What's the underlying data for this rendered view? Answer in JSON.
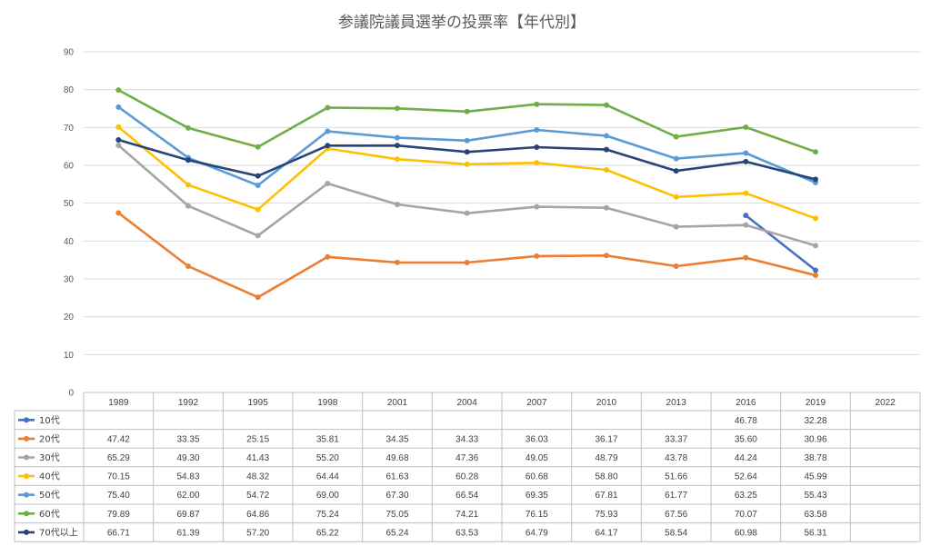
{
  "chart_data": {
    "type": "line",
    "title": "参議院議員選挙の投票率【年代別】",
    "categories": [
      "1989",
      "1992",
      "1995",
      "1998",
      "2001",
      "2004",
      "2007",
      "2010",
      "2013",
      "2016",
      "2019",
      "2022"
    ],
    "ylim": [
      0,
      90
    ],
    "yticks": [
      0,
      10,
      20,
      30,
      40,
      50,
      60,
      70,
      80,
      90
    ],
    "grid": true,
    "legend": "data-table",
    "series": [
      {
        "name": "10代",
        "color": "#4472c4",
        "values": [
          null,
          null,
          null,
          null,
          null,
          null,
          null,
          null,
          null,
          46.78,
          32.28,
          null
        ],
        "labels": [
          "",
          "",
          "",
          "",
          "",
          "",
          "",
          "",
          "",
          "46.78",
          "32.28",
          ""
        ]
      },
      {
        "name": "20代",
        "color": "#ed7d31",
        "values": [
          47.42,
          33.35,
          25.15,
          35.81,
          34.35,
          34.33,
          36.03,
          36.17,
          33.37,
          35.6,
          30.96,
          null
        ],
        "labels": [
          "47.42",
          "33.35",
          "25.15",
          "35.81",
          "34.35",
          "34.33",
          "36.03",
          "36.17",
          "33.37",
          "35.60",
          "30.96",
          ""
        ]
      },
      {
        "name": "30代",
        "color": "#a5a5a5",
        "values": [
          65.29,
          49.3,
          41.43,
          55.2,
          49.68,
          47.36,
          49.05,
          48.79,
          43.78,
          44.24,
          38.78,
          null
        ],
        "labels": [
          "65.29",
          "49.30",
          "41.43",
          "55.20",
          "49.68",
          "47.36",
          "49.05",
          "48.79",
          "43.78",
          "44.24",
          "38.78",
          ""
        ]
      },
      {
        "name": "40代",
        "color": "#ffc000",
        "values": [
          70.15,
          54.83,
          48.32,
          64.44,
          61.63,
          60.28,
          60.68,
          58.8,
          51.66,
          52.64,
          45.99,
          null
        ],
        "labels": [
          "70.15",
          "54.83",
          "48.32",
          "64.44",
          "61.63",
          "60.28",
          "60.68",
          "58.80",
          "51.66",
          "52.64",
          "45.99",
          ""
        ]
      },
      {
        "name": "50代",
        "color": "#5b9bd5",
        "values": [
          75.4,
          62.0,
          54.72,
          69.0,
          67.3,
          66.54,
          69.35,
          67.81,
          61.77,
          63.25,
          55.43,
          null
        ],
        "labels": [
          "75.40",
          "62.00",
          "54.72",
          "69.00",
          "67.30",
          "66.54",
          "69.35",
          "67.81",
          "61.77",
          "63.25",
          "55.43",
          ""
        ]
      },
      {
        "name": "60代",
        "color": "#70ad47",
        "values": [
          79.89,
          69.87,
          64.86,
          75.24,
          75.05,
          74.21,
          76.15,
          75.93,
          67.56,
          70.07,
          63.58,
          null
        ],
        "labels": [
          "79.89",
          "69.87",
          "64.86",
          "75.24",
          "75.05",
          "74.21",
          "76.15",
          "75.93",
          "67.56",
          "70.07",
          "63.58",
          ""
        ]
      },
      {
        "name": "70代以上",
        "color": "#264478",
        "values": [
          66.71,
          61.39,
          57.2,
          65.22,
          65.24,
          63.53,
          64.79,
          64.17,
          58.54,
          60.98,
          56.31,
          null
        ],
        "labels": [
          "66.71",
          "61.39",
          "57.20",
          "65.22",
          "65.24",
          "63.53",
          "64.79",
          "64.17",
          "58.54",
          "60.98",
          "56.31",
          ""
        ]
      }
    ]
  }
}
